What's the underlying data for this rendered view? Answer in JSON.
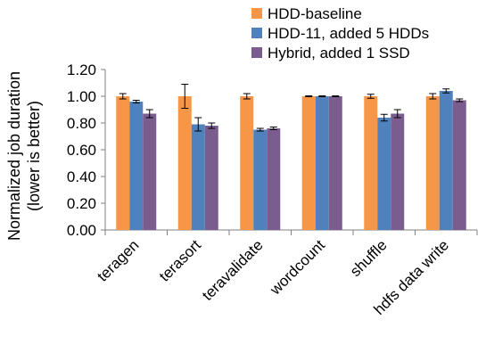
{
  "chart_data": {
    "type": "bar",
    "title": "",
    "ylabel_line1": "Normalized job duration",
    "ylabel_line2": "(lower is better)",
    "xlabel": "",
    "ylim": [
      0,
      1.2
    ],
    "yticks": [
      "0.00",
      "0.20",
      "0.40",
      "0.60",
      "0.80",
      "1.00",
      "1.20"
    ],
    "ytick_values": [
      0,
      0.2,
      0.4,
      0.6,
      0.8,
      1.0,
      1.2
    ],
    "grid": false,
    "legend_position": "top-right",
    "categories": [
      "teragen",
      "terasort",
      "teravalidate",
      "wordcount",
      "shuffle",
      "hdfs data write"
    ],
    "series": [
      {
        "name": "HDD-baseline",
        "color": "#F79646",
        "values": [
          1.0,
          1.0,
          1.0,
          1.0,
          1.0,
          1.0
        ],
        "errors": [
          0.02,
          0.09,
          0.02,
          0.003,
          0.015,
          0.02
        ]
      },
      {
        "name": "HDD-11, added 5 HDDs",
        "color": "#4F81BD",
        "values": [
          0.96,
          0.79,
          0.75,
          1.0,
          0.84,
          1.04
        ],
        "errors": [
          0.01,
          0.05,
          0.01,
          0.003,
          0.025,
          0.015
        ]
      },
      {
        "name": "Hybrid, added 1 SSD",
        "color": "#7A5C8E",
        "values": [
          0.87,
          0.78,
          0.76,
          1.0,
          0.87,
          0.97
        ],
        "errors": [
          0.03,
          0.02,
          0.01,
          0.003,
          0.03,
          0.01
        ]
      }
    ]
  }
}
